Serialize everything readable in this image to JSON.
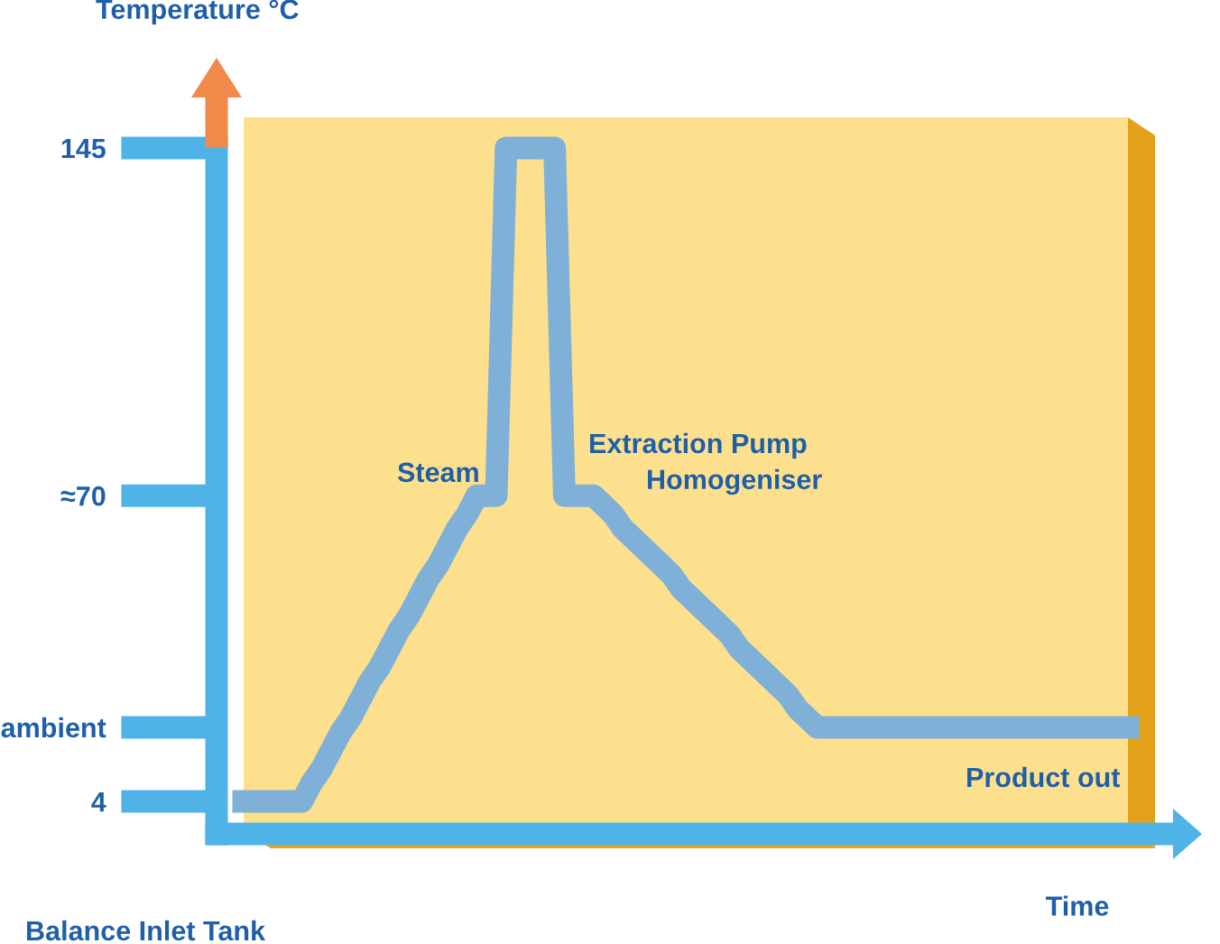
{
  "chart_data": {
    "type": "line",
    "ylabel": "Temperature °C",
    "xlabel": "Time",
    "categories": [
      null,
      null,
      null,
      null,
      null,
      null,
      null,
      null,
      null,
      null,
      null,
      null,
      null,
      null,
      null,
      null,
      null,
      null,
      null,
      null,
      null,
      null,
      null,
      null,
      null,
      null,
      null,
      null,
      null,
      null,
      null,
      null,
      null,
      null,
      null,
      null,
      null,
      null,
      null,
      null,
      null,
      null,
      null,
      null,
      null,
      null,
      null,
      null,
      null,
      null,
      null,
      null,
      null,
      null,
      null,
      null,
      null,
      null,
      null,
      null,
      null,
      null,
      null,
      null,
      null,
      null,
      null,
      null,
      null,
      null,
      null,
      null,
      null,
      null,
      null,
      null,
      null,
      null,
      null,
      null,
      null,
      null,
      null,
      null,
      null,
      null,
      null,
      null,
      null,
      null,
      null,
      null
    ],
    "series": [
      {
        "color": "#7fb0d8",
        "values": [
          4,
          4,
          4,
          4,
          4,
          4,
          4,
          8,
          11,
          15,
          19,
          22,
          26,
          30,
          33,
          37,
          41,
          44,
          48,
          52,
          55,
          59,
          63,
          66,
          70,
          70,
          70,
          145,
          145,
          145,
          145,
          145,
          145,
          70,
          70,
          70,
          70,
          68,
          66,
          63,
          61,
          59,
          57,
          55,
          53,
          50,
          48,
          46,
          44,
          42,
          40,
          37,
          35,
          33,
          31,
          29,
          27,
          24,
          22,
          20,
          20,
          20,
          20,
          20,
          20,
          20,
          20,
          20,
          20,
          20,
          20,
          20,
          20,
          20,
          20,
          20,
          20,
          20,
          20,
          20,
          20,
          20,
          20,
          20,
          20,
          20,
          20,
          20,
          20,
          20,
          20,
          20
        ]
      }
    ],
    "ylim": [
      -3,
      145
    ],
    "yticks": [
      4,
      {
        "value": 20,
        "label": "ambient"
      },
      {
        "value": 70,
        "label": "≈70"
      },
      145
    ],
    "tick_labels": "y",
    "grid": false,
    "line_style": "solid",
    "annotations": [
      "Steam",
      "Extraction Pump",
      "Homogeniser",
      "Product out",
      "Balance Inlet Tank"
    ]
  }
}
